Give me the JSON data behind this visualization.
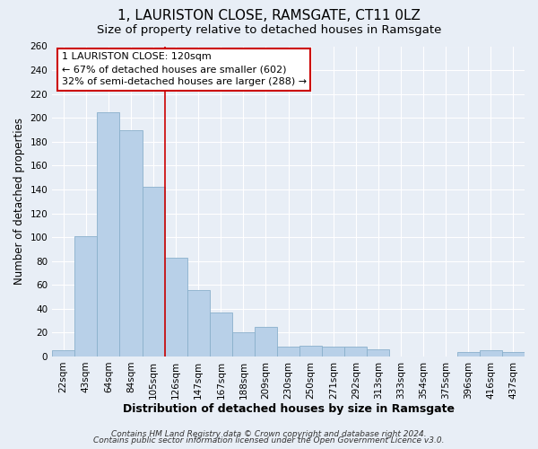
{
  "title": "1, LAURISTON CLOSE, RAMSGATE, CT11 0LZ",
  "subtitle": "Size of property relative to detached houses in Ramsgate",
  "xlabel": "Distribution of detached houses by size in Ramsgate",
  "ylabel": "Number of detached properties",
  "bar_labels": [
    "22sqm",
    "43sqm",
    "64sqm",
    "84sqm",
    "105sqm",
    "126sqm",
    "147sqm",
    "167sqm",
    "188sqm",
    "209sqm",
    "230sqm",
    "250sqm",
    "271sqm",
    "292sqm",
    "313sqm",
    "333sqm",
    "354sqm",
    "375sqm",
    "396sqm",
    "416sqm",
    "437sqm"
  ],
  "bar_values": [
    5,
    101,
    205,
    190,
    142,
    83,
    56,
    37,
    20,
    25,
    8,
    9,
    8,
    8,
    6,
    0,
    0,
    0,
    4,
    5,
    4
  ],
  "bar_color": "#b8d0e8",
  "bar_edge_color": "#8ab0cc",
  "vline_index": 5,
  "vline_color": "#cc0000",
  "annotation_title": "1 LAURISTON CLOSE: 120sqm",
  "annotation_line1": "← 67% of detached houses are smaller (602)",
  "annotation_line2": "32% of semi-detached houses are larger (288) →",
  "annotation_box_facecolor": "#ffffff",
  "annotation_box_edgecolor": "#cc0000",
  "ylim": [
    0,
    260
  ],
  "yticks": [
    0,
    20,
    40,
    60,
    80,
    100,
    120,
    140,
    160,
    180,
    200,
    220,
    240,
    260
  ],
  "footer1": "Contains HM Land Registry data © Crown copyright and database right 2024.",
  "footer2": "Contains public sector information licensed under the Open Government Licence v3.0.",
  "background_color": "#e8eef6",
  "plot_background": "#e8eef6",
  "grid_color": "#ffffff",
  "title_fontsize": 11,
  "subtitle_fontsize": 9.5,
  "tick_fontsize": 7.5,
  "ylabel_fontsize": 8.5,
  "xlabel_fontsize": 9,
  "annotation_fontsize": 8,
  "footer_fontsize": 6.5
}
